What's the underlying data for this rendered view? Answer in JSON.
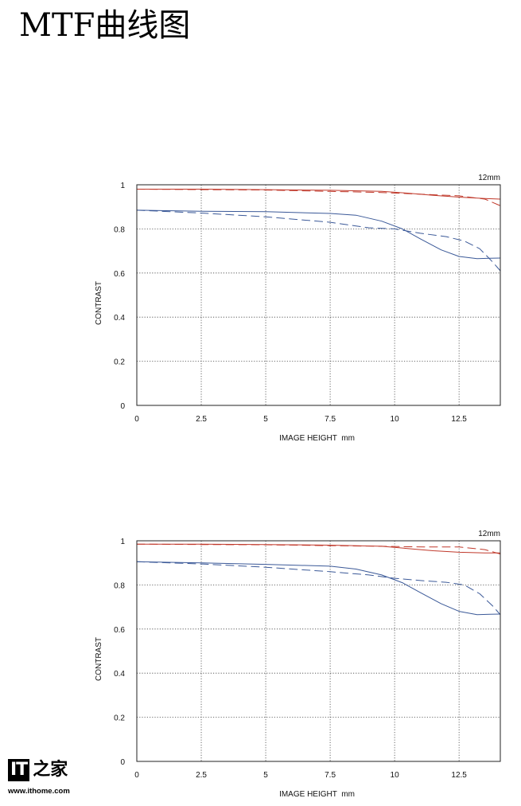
{
  "page": {
    "title": "MTF曲线图"
  },
  "watermark": {
    "logo_it": "IT",
    "logo_home": "之家",
    "url": "www.ithome.com"
  },
  "colors": {
    "sagittal_red": "#c0392b",
    "meridional_red": "#c0392b",
    "sagittal_blue": "#3b5998",
    "meridional_blue": "#3b5998",
    "frame": "#222222",
    "grid": "#444444"
  },
  "chart_data": [
    {
      "type": "line",
      "corner_label": "12mm",
      "xlabel": "IMAGE HEIGHT  mm",
      "ylabel": "CONTRAST",
      "xlim": [
        0,
        14.1
      ],
      "ylim": [
        0,
        1
      ],
      "x_ticks": [
        0,
        2.5,
        5,
        7.5,
        10,
        12.5
      ],
      "x_tick_labels": [
        "0",
        "2.5",
        "5",
        "7.5",
        "10",
        "12.5"
      ],
      "y_ticks": [
        0,
        0.2,
        0.4,
        0.6,
        0.8,
        1
      ],
      "y_tick_labels": [
        "0",
        "0.2",
        "0.4",
        "0.6",
        "0.8",
        "1"
      ],
      "grid": "dotted",
      "series": [
        {
          "color": "#c0392b",
          "dash": "solid",
          "points": [
            [
              0,
              0.98
            ],
            [
              2.5,
              0.98
            ],
            [
              5,
              0.978
            ],
            [
              7.5,
              0.975
            ],
            [
              9.5,
              0.97
            ],
            [
              10.5,
              0.962
            ],
            [
              11.5,
              0.952
            ],
            [
              12.5,
              0.944
            ],
            [
              13.5,
              0.938
            ],
            [
              14.1,
              0.935
            ]
          ]
        },
        {
          "color": "#c0392b",
          "dash": "dashed",
          "points": [
            [
              0,
              0.98
            ],
            [
              2.5,
              0.978
            ],
            [
              5,
              0.976
            ],
            [
              7.5,
              0.97
            ],
            [
              9.5,
              0.965
            ],
            [
              10.5,
              0.96
            ],
            [
              11.5,
              0.955
            ],
            [
              12.5,
              0.95
            ],
            [
              13.5,
              0.935
            ],
            [
              14.1,
              0.905
            ]
          ]
        },
        {
          "color": "#3b5998",
          "dash": "solid",
          "points": [
            [
              0,
              0.885
            ],
            [
              2.5,
              0.88
            ],
            [
              5,
              0.878
            ],
            [
              7.5,
              0.87
            ],
            [
              8.5,
              0.862
            ],
            [
              9.5,
              0.835
            ],
            [
              10.3,
              0.8
            ],
            [
              11.0,
              0.755
            ],
            [
              11.8,
              0.705
            ],
            [
              12.5,
              0.675
            ],
            [
              13.2,
              0.665
            ],
            [
              13.7,
              0.667
            ],
            [
              14.1,
              0.668
            ]
          ]
        },
        {
          "color": "#3b5998",
          "dash": "dashed",
          "points": [
            [
              0,
              0.885
            ],
            [
              2.5,
              0.872
            ],
            [
              5,
              0.855
            ],
            [
              7.5,
              0.83
            ],
            [
              9.0,
              0.805
            ],
            [
              10.0,
              0.8
            ],
            [
              11.0,
              0.78
            ],
            [
              12.0,
              0.765
            ],
            [
              12.7,
              0.745
            ],
            [
              13.3,
              0.71
            ],
            [
              13.8,
              0.65
            ],
            [
              14.1,
              0.61
            ]
          ]
        }
      ]
    },
    {
      "type": "line",
      "corner_label": "12mm",
      "xlabel": "IMAGE HEIGHT  mm",
      "ylabel": "CONTRAST",
      "xlim": [
        0,
        14.1
      ],
      "ylim": [
        0,
        1
      ],
      "x_ticks": [
        0,
        2.5,
        5,
        7.5,
        10,
        12.5
      ],
      "x_tick_labels": [
        "0",
        "2.5",
        "5",
        "7.5",
        "10",
        "12.5"
      ],
      "y_ticks": [
        0,
        0.2,
        0.4,
        0.6,
        0.8,
        1
      ],
      "y_tick_labels": [
        "0",
        "0.2",
        "0.4",
        "0.6",
        "0.8",
        "1"
      ],
      "grid": "dotted",
      "series": [
        {
          "color": "#c0392b",
          "dash": "solid",
          "points": [
            [
              0,
              0.985
            ],
            [
              2.5,
              0.985
            ],
            [
              5,
              0.983
            ],
            [
              7.5,
              0.98
            ],
            [
              9.5,
              0.975
            ],
            [
              10.5,
              0.965
            ],
            [
              11.5,
              0.955
            ],
            [
              12.5,
              0.948
            ],
            [
              13.5,
              0.945
            ],
            [
              14.1,
              0.945
            ]
          ]
        },
        {
          "color": "#c0392b",
          "dash": "dashed",
          "points": [
            [
              0,
              0.985
            ],
            [
              2.5,
              0.983
            ],
            [
              5,
              0.982
            ],
            [
              7.5,
              0.978
            ],
            [
              9.5,
              0.975
            ],
            [
              10.5,
              0.973
            ],
            [
              11.5,
              0.972
            ],
            [
              12.5,
              0.972
            ],
            [
              13.5,
              0.96
            ],
            [
              14.1,
              0.94
            ]
          ]
        },
        {
          "color": "#3b5998",
          "dash": "solid",
          "points": [
            [
              0,
              0.905
            ],
            [
              2.5,
              0.9
            ],
            [
              5,
              0.893
            ],
            [
              7.5,
              0.885
            ],
            [
              8.5,
              0.872
            ],
            [
              9.5,
              0.845
            ],
            [
              10.3,
              0.81
            ],
            [
              11.0,
              0.765
            ],
            [
              11.8,
              0.715
            ],
            [
              12.5,
              0.68
            ],
            [
              13.2,
              0.665
            ],
            [
              13.7,
              0.667
            ],
            [
              14.1,
              0.668
            ]
          ]
        },
        {
          "color": "#3b5998",
          "dash": "dashed",
          "points": [
            [
              0,
              0.905
            ],
            [
              2.5,
              0.895
            ],
            [
              5,
              0.88
            ],
            [
              7.5,
              0.86
            ],
            [
              9.0,
              0.845
            ],
            [
              10.0,
              0.83
            ],
            [
              11.0,
              0.82
            ],
            [
              12.0,
              0.812
            ],
            [
              12.7,
              0.8
            ],
            [
              13.3,
              0.76
            ],
            [
              13.8,
              0.705
            ],
            [
              14.1,
              0.665
            ]
          ]
        }
      ]
    }
  ]
}
